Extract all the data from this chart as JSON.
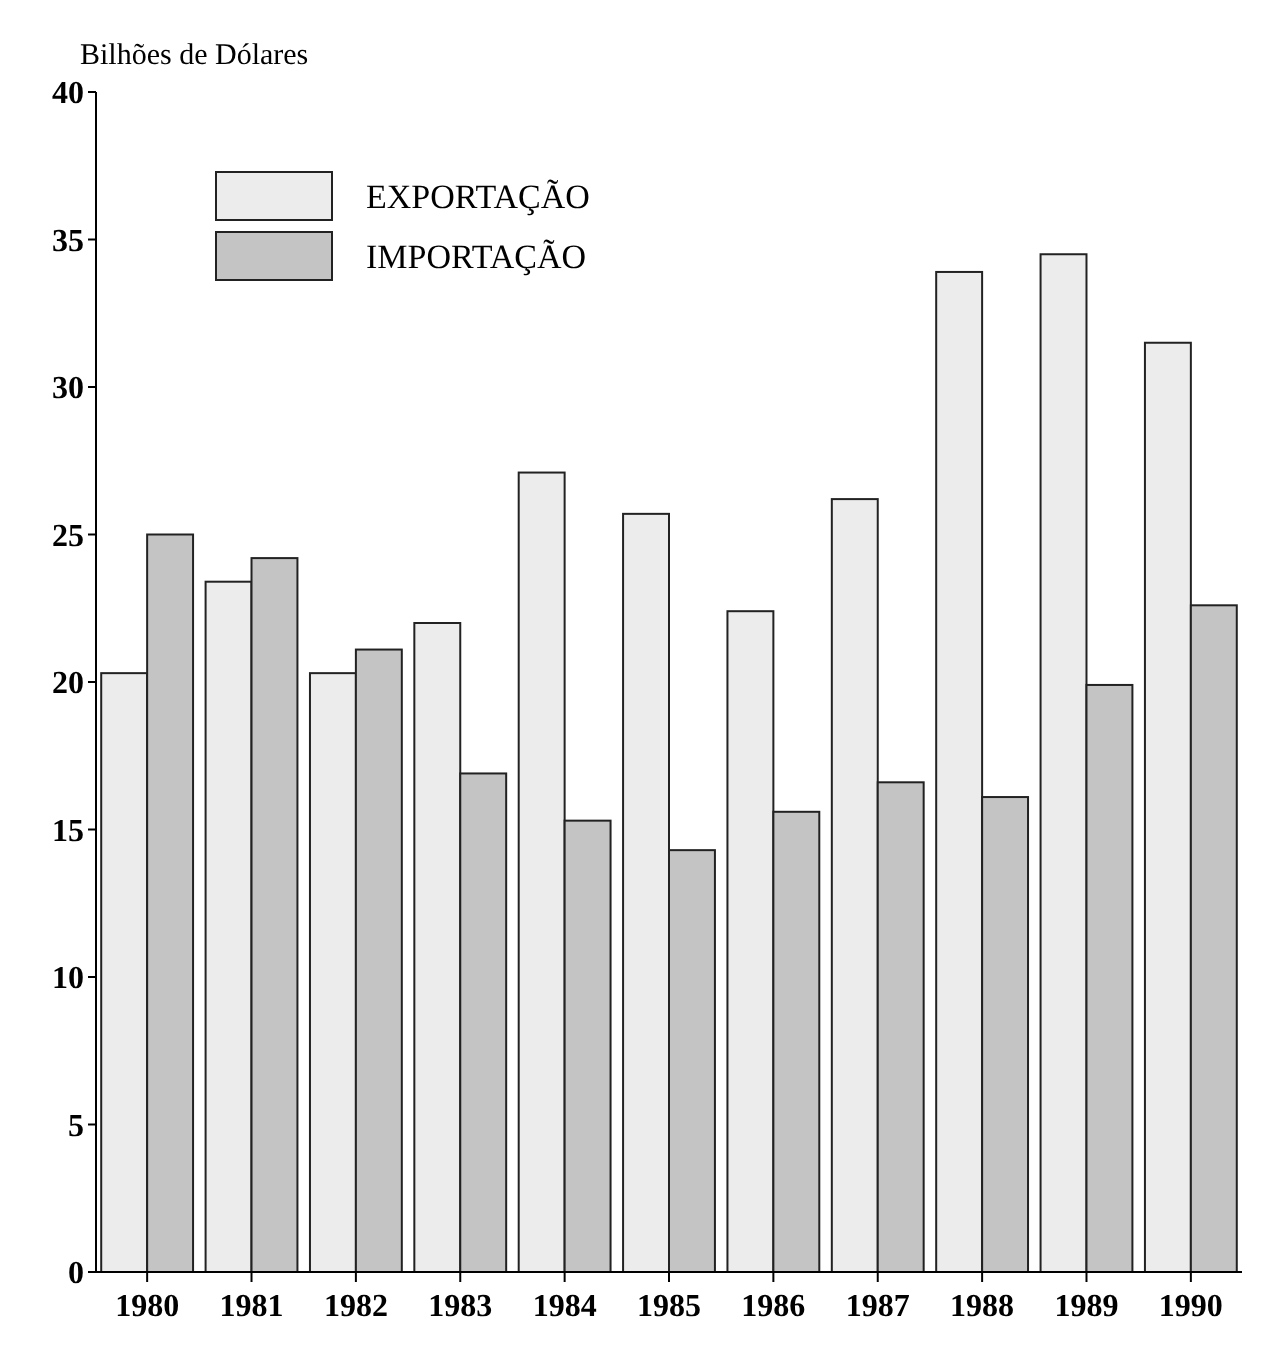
{
  "chart_data": {
    "type": "bar",
    "ylabel": "Bilhões de Dólares",
    "categories": [
      "1980",
      "1981",
      "1982",
      "1983",
      "1984",
      "1985",
      "1986",
      "1987",
      "1988",
      "1989",
      "1990"
    ],
    "series": [
      {
        "name": "EXPORTAÇÃO",
        "color": "#ececec",
        "values": [
          20.3,
          23.4,
          20.3,
          22.0,
          27.1,
          25.7,
          22.4,
          26.2,
          33.9,
          34.5,
          31.5
        ]
      },
      {
        "name": "IMPORTAÇÃO",
        "color": "#c4c4c4",
        "values": [
          25.0,
          24.2,
          21.1,
          16.9,
          15.3,
          14.3,
          15.6,
          16.6,
          16.1,
          19.9,
          22.6
        ]
      }
    ],
    "ylim": [
      0,
      40
    ],
    "yticks": [
      0,
      5,
      10,
      15,
      20,
      25,
      30,
      35,
      40
    ],
    "legend": "top left",
    "grid": false
  }
}
